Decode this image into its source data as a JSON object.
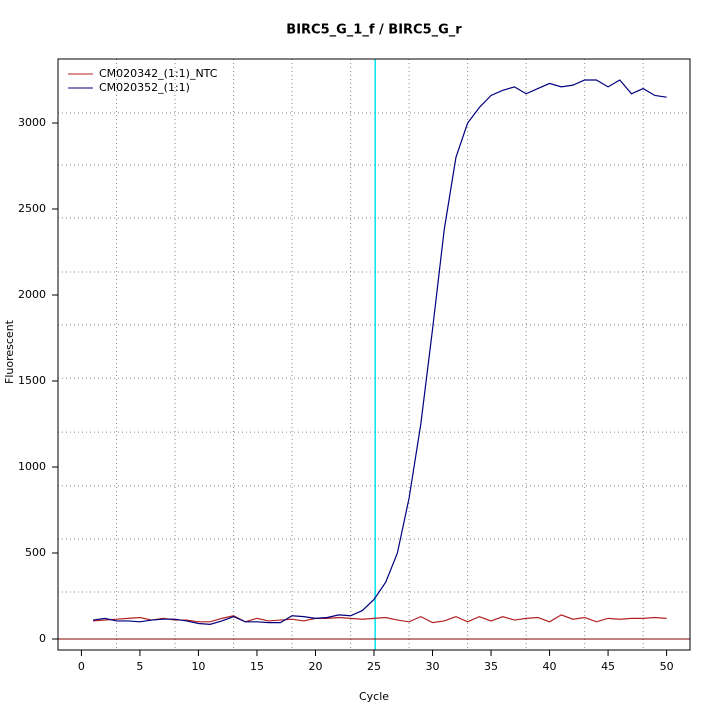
{
  "chart_data": {
    "type": "line",
    "title": "BIRC5_G_1_f / BIRC5_G_r",
    "x_label": "Cycle",
    "y_label": "Fluorescent",
    "x": [
      1,
      2,
      3,
      4,
      5,
      6,
      7,
      8,
      9,
      10,
      11,
      12,
      13,
      14,
      15,
      16,
      17,
      18,
      19,
      20,
      21,
      22,
      23,
      24,
      25,
      26,
      27,
      28,
      29,
      30,
      31,
      32,
      33,
      34,
      35,
      36,
      37,
      38,
      39,
      40,
      41,
      42,
      43,
      44,
      45,
      46,
      47,
      48,
      49,
      50
    ],
    "series": [
      {
        "name": "CM020342_(1:1)_NTC",
        "color": "#b22222",
        "values": [
          105,
          110,
          115,
          120,
          125,
          110,
          120,
          110,
          110,
          100,
          100,
          120,
          135,
          100,
          120,
          105,
          110,
          115,
          105,
          120,
          120,
          125,
          120,
          115,
          120,
          125,
          110,
          100,
          130,
          95,
          105,
          130,
          100,
          130,
          105,
          130,
          110,
          120,
          125,
          100,
          140,
          115,
          125,
          100,
          120,
          115,
          120,
          120,
          125,
          120
        ]
      },
      {
        "name": "CM020352_(1:1)",
        "color": "#000080",
        "values": [
          110,
          120,
          105,
          105,
          100,
          110,
          115,
          115,
          105,
          90,
          85,
          105,
          130,
          100,
          100,
          95,
          95,
          135,
          130,
          120,
          125,
          140,
          135,
          165,
          230,
          330,
          500,
          820,
          1250,
          1800,
          2380,
          2800,
          3000,
          3090,
          3160,
          3190,
          3210,
          3170,
          3200,
          3230,
          3210,
          3220,
          3250,
          3250,
          3210,
          3250,
          3170,
          3200,
          3160,
          3150
        ]
      }
    ],
    "xlim": [
      -2,
      52
    ],
    "ylim": [
      -64,
      3372
    ],
    "xticks": [
      0,
      5,
      10,
      15,
      20,
      25,
      30,
      35,
      40,
      45,
      50
    ],
    "yticks": [
      0,
      500,
      1000,
      1500,
      2000,
      2500,
      3000
    ],
    "xgrid": [
      3,
      8,
      13,
      18,
      23,
      28,
      33,
      38,
      43,
      48
    ],
    "ygrid": [
      273,
      581,
      890,
      1203,
      1517,
      1826,
      2134,
      2448,
      2756,
      3058
    ],
    "vline": {
      "value": 25.1,
      "color": "#00e5ee"
    },
    "hline": {
      "value": 0,
      "color": "#8b0000"
    },
    "legend": "top-left"
  }
}
